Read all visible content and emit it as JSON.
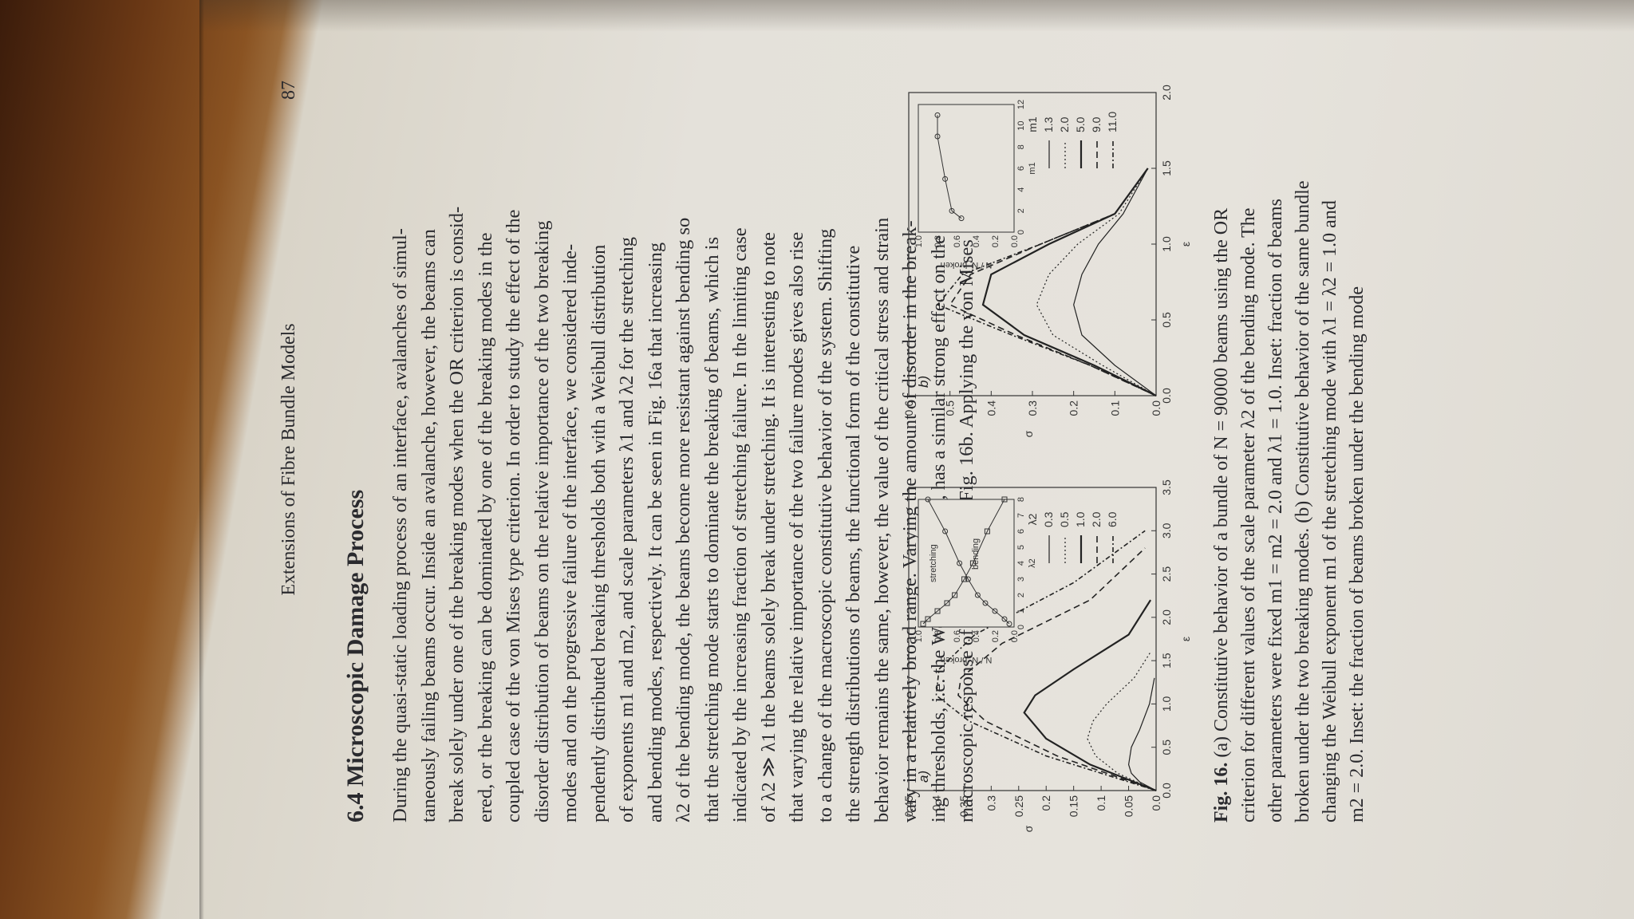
{
  "running_head": "Extensions of Fibre Bundle Models",
  "page_number": "87",
  "section_title": "6.4 Microscopic Damage Process",
  "body_lines": [
    "During the quasi-static loading process of an interface, avalanches of simul-",
    "taneously failing beams occur. Inside an avalanche, however, the beams can",
    "break solely under one of the breaking modes when the OR criterion is consid-",
    "ered, or the breaking can be dominated by one of the breaking modes in the",
    "coupled case of the von Mises type criterion. In order to study the effect of the",
    "disorder distribution of beams on the relative importance of the two breaking",
    "modes and on the progressive failure of the interface, we considered inde-",
    "pendently distributed breaking thresholds both with a Weibull distribution",
    "of exponents m1 and m2, and scale parameters λ1 and λ2 for the stretching",
    "and bending modes, respectively. It can be seen in Fig. 16a that increasing",
    "λ2 of the bending mode, the beams become more resistant against bending so",
    "that the stretching mode starts to dominate the breaking of beams, which is",
    "indicated by the increasing fraction of stretching failure. In the limiting case",
    "of λ2 ≫ λ1 the beams solely break under stretching. It is interesting to note",
    "that varying the relative importance of the two failure modes gives also rise",
    "to a change of the macroscopic constitutive behavior of the system. Shifting",
    "the strength distributions of beams, the functional form of the constitutive",
    "behavior remains the same, however, the value of the critical stress and strain",
    "vary in a relatively broad range. Varying the amount of disorder in the break-",
    "ing thresholds, i.e. the Weibull exponents, has a similar strong effect on the",
    "macroscopic response of the system, see Fig. 16b. Applying the von Mises"
  ],
  "caption": {
    "label": "Fig. 16.",
    "lines": [
      "(a) Constitutive behavior of a bundle of N = 90000 beams using the OR",
      "criterion for different values of the scale parameter λ2 of the bending mode. The",
      "other parameters were fixed m1 = m2 = 2.0 and λ1 = 1.0. Inset: fraction of beams",
      "broken under the two breaking modes. (b) Constitutive behavior of the same bundle",
      "changing the Weibull exponent m1 of the stretching mode with λ1 = λ2 = 1.0 and",
      "m2 = 2.0. Inset: the fraction of beams broken under the bending mode"
    ]
  },
  "chart_data": [
    {
      "type": "line",
      "panel_label": "a)",
      "xlabel": "ε",
      "ylabel": "σ",
      "xlim": [
        0.0,
        3.5
      ],
      "ylim": [
        0.0,
        0.45
      ],
      "x_ticks": [
        "0.0",
        "0.5",
        "1.0",
        "1.5",
        "2.0",
        "2.5",
        "3.0",
        "3.5"
      ],
      "y_ticks": [
        "0.0",
        "0.05",
        "0.1",
        "0.15",
        "0.2",
        "0.25",
        "0.3",
        "0.35",
        "0.4",
        "0.45"
      ],
      "legend_title": "λ2",
      "legend_placement": "right",
      "series": [
        {
          "name": "0.3",
          "x": [
            0,
            0.1,
            0.2,
            0.3,
            0.5,
            0.7,
            1.0,
            1.3
          ],
          "y": [
            0,
            0.03,
            0.045,
            0.05,
            0.045,
            0.03,
            0.012,
            0.003
          ]
        },
        {
          "name": "0.5",
          "x": [
            0,
            0.2,
            0.4,
            0.6,
            0.8,
            1.0,
            1.3,
            1.6
          ],
          "y": [
            0,
            0.07,
            0.11,
            0.125,
            0.115,
            0.09,
            0.04,
            0.01
          ]
        },
        {
          "name": "1.0",
          "x": [
            0,
            0.3,
            0.6,
            0.9,
            1.1,
            1.4,
            1.8,
            2.2
          ],
          "y": [
            0,
            0.12,
            0.2,
            0.24,
            0.22,
            0.15,
            0.05,
            0.01
          ]
        },
        {
          "name": "2.0",
          "x": [
            0,
            0.4,
            0.8,
            1.1,
            1.3,
            1.7,
            2.2,
            2.8
          ],
          "y": [
            0,
            0.18,
            0.31,
            0.36,
            0.355,
            0.28,
            0.12,
            0.02
          ]
        },
        {
          "name": "6.0",
          "x": [
            0,
            0.4,
            0.8,
            1.1,
            1.4,
            1.8,
            2.4,
            3.0
          ],
          "y": [
            0,
            0.2,
            0.34,
            0.4,
            0.395,
            0.33,
            0.15,
            0.02
          ]
        }
      ],
      "inset": {
        "xlabel": "λ2",
        "ylabel": "N / N_broken",
        "x_ticks": [
          "0",
          "1",
          "2",
          "3",
          "4",
          "5",
          "6",
          "7",
          "8"
        ],
        "y_ticks": [
          "0.0",
          "0.2",
          "0.4",
          "0.6",
          "0.8",
          "1.0"
        ],
        "annotations": [
          "stretching",
          "bending"
        ],
        "series": [
          {
            "name": "stretching",
            "x": [
              0.2,
              0.5,
              1,
              1.5,
              2,
              3,
              4,
              6,
              8
            ],
            "y": [
              0.05,
              0.1,
              0.2,
              0.3,
              0.38,
              0.48,
              0.57,
              0.72,
              0.9
            ]
          },
          {
            "name": "bending",
            "x": [
              0.2,
              0.5,
              1,
              1.5,
              2,
              3,
              4,
              6,
              8
            ],
            "y": [
              0.95,
              0.9,
              0.8,
              0.7,
              0.62,
              0.52,
              0.43,
              0.28,
              0.1
            ]
          }
        ]
      }
    },
    {
      "type": "line",
      "panel_label": "b)",
      "xlabel": "ε",
      "ylabel": "σ",
      "xlim": [
        0.0,
        2.0
      ],
      "ylim": [
        0.0,
        0.6
      ],
      "x_ticks": [
        "0.0",
        "0.5",
        "1.0",
        "1.5",
        "2.0"
      ],
      "y_ticks": [
        "0.0",
        "0.1",
        "0.2",
        "0.3",
        "0.4",
        "0.5",
        "0.6"
      ],
      "legend_title": "m1",
      "legend_placement": "right",
      "series": [
        {
          "name": "1.3",
          "x": [
            0,
            0.2,
            0.4,
            0.6,
            0.8,
            1.0,
            1.2,
            1.5
          ],
          "y": [
            0,
            0.1,
            0.18,
            0.2,
            0.18,
            0.14,
            0.08,
            0.02
          ]
        },
        {
          "name": "2.0",
          "x": [
            0,
            0.2,
            0.4,
            0.6,
            0.8,
            1.0,
            1.2,
            1.5
          ],
          "y": [
            0,
            0.13,
            0.25,
            0.29,
            0.26,
            0.19,
            0.09,
            0.02
          ]
        },
        {
          "name": "5.0",
          "x": [
            0,
            0.2,
            0.4,
            0.6,
            0.8,
            1.0,
            1.2,
            1.5
          ],
          "y": [
            0,
            0.15,
            0.32,
            0.42,
            0.4,
            0.26,
            0.1,
            0.02
          ]
        },
        {
          "name": "9.0",
          "x": [
            0,
            0.2,
            0.4,
            0.6,
            0.8,
            1.0,
            1.2,
            1.5
          ],
          "y": [
            0,
            0.16,
            0.34,
            0.5,
            0.45,
            0.28,
            0.1,
            0.02
          ]
        },
        {
          "name": "11.0",
          "x": [
            0,
            0.2,
            0.4,
            0.6,
            0.8,
            1.0,
            1.2,
            1.5
          ],
          "y": [
            0,
            0.16,
            0.35,
            0.53,
            0.47,
            0.28,
            0.1,
            0.02
          ]
        }
      ],
      "inset": {
        "xlabel": "m1",
        "ylabel": "N / N_broken",
        "x_ticks": [
          "0",
          "2",
          "4",
          "6",
          "8",
          "10",
          "12"
        ],
        "y_ticks": [
          "0.0",
          "0.2",
          "0.4",
          "0.6",
          "0.8",
          "1.0"
        ],
        "series": [
          {
            "name": "bending",
            "x": [
              1.3,
              2,
              5,
              9,
              11
            ],
            "y": [
              0.55,
              0.65,
              0.72,
              0.8,
              0.8
            ]
          }
        ]
      }
    }
  ]
}
